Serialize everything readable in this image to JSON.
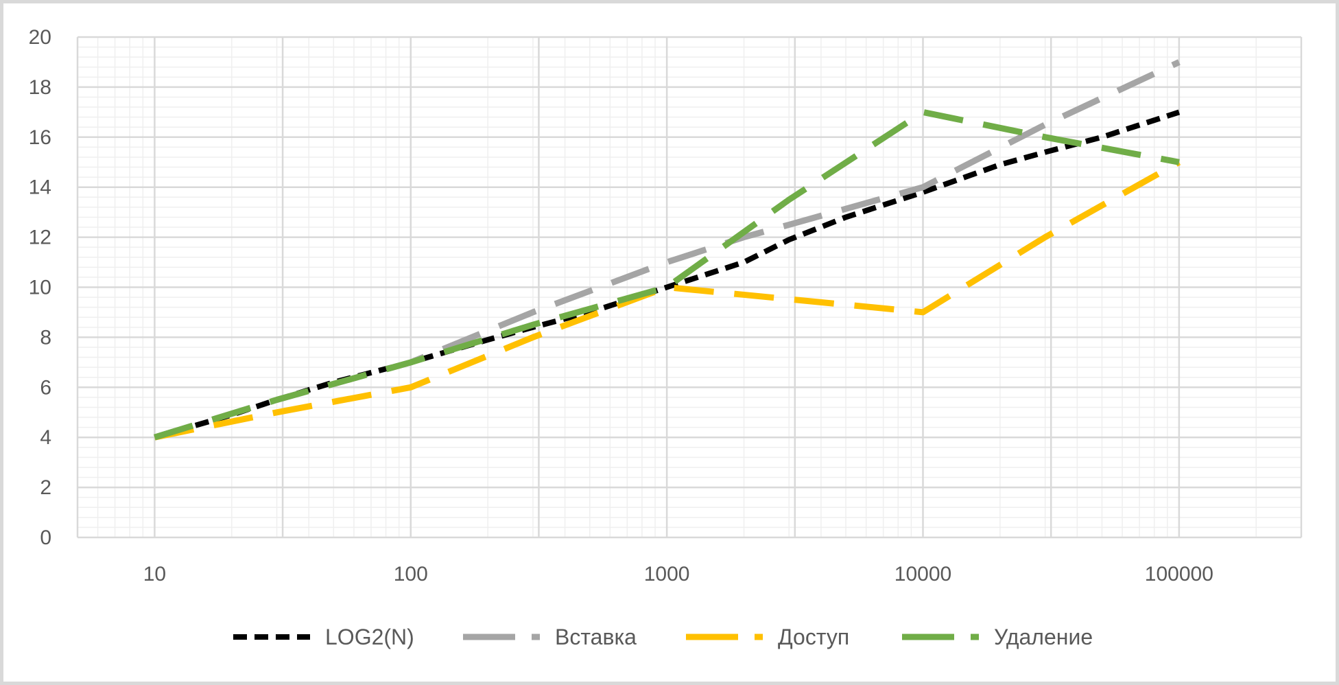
{
  "chart_data": {
    "type": "line",
    "x_scale": "log",
    "x": [
      10,
      100,
      1000,
      10000,
      100000
    ],
    "x_tick_labels": [
      "10",
      "100",
      "1000",
      "10000",
      "100000"
    ],
    "y_tick_labels": [
      "0",
      "2",
      "4",
      "6",
      "8",
      "10",
      "12",
      "14",
      "16",
      "18",
      "20"
    ],
    "ylim": [
      0,
      20
    ],
    "xlim": [
      5,
      300000
    ],
    "grid": true,
    "legend_position": "bottom",
    "series": [
      {
        "name": "LOG2(N)",
        "color": "#000000",
        "x": [
          10,
          20,
          30,
          50,
          100,
          200,
          300,
          500,
          1000,
          2000,
          3000,
          5000,
          10000,
          20000,
          30000,
          50000,
          100000
        ],
        "values": [
          4,
          4.9,
          5.5,
          6.2,
          7,
          7.9,
          8.4,
          9.0,
          10,
          11,
          11.9,
          12.8,
          13.8,
          14.9,
          15.4,
          16.0,
          17
        ]
      },
      {
        "name": "Вставка",
        "color": "#a5a5a5",
        "x": [
          10,
          30,
          100,
          300,
          1000,
          2000,
          3000,
          10000,
          30000,
          100000
        ],
        "values": [
          4,
          5.5,
          7,
          9,
          11,
          12,
          12.5,
          14,
          16.5,
          19
        ]
      },
      {
        "name": "Доступ",
        "color": "#ffc000",
        "x": [
          10,
          30,
          100,
          300,
          1000,
          10000,
          30000,
          100000
        ],
        "values": [
          4,
          5,
          6,
          8,
          10,
          9,
          12,
          15
        ]
      },
      {
        "name": "Удаление",
        "color": "#70ad47",
        "x": [
          10,
          30,
          100,
          300,
          1000,
          3000,
          10000,
          30000,
          100000
        ],
        "values": [
          4,
          5.5,
          7,
          8.5,
          10,
          13.5,
          17,
          16,
          15
        ]
      }
    ]
  }
}
